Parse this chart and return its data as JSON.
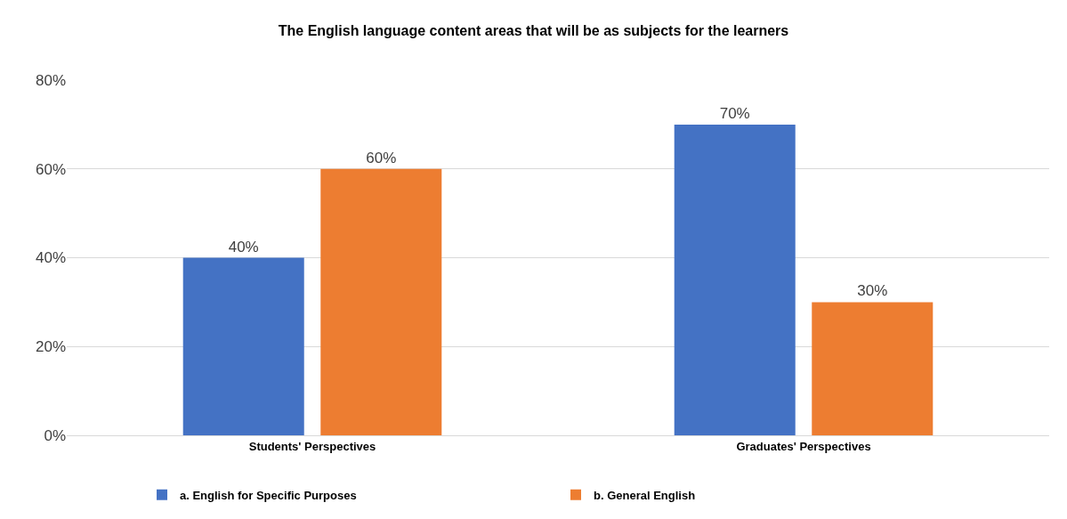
{
  "chart_data": {
    "type": "bar",
    "title": "The English language content areas that will be as subjects for the learners",
    "categories": [
      "Students' Perspectives",
      "Graduates' Perspectives"
    ],
    "series": [
      {
        "name": "a. English for Specific Purposes",
        "color": "#4472c4",
        "values": [
          40,
          70
        ],
        "value_labels": [
          "40%",
          "70%"
        ]
      },
      {
        "name": "b. General English",
        "color": "#ed7d31",
        "values": [
          60,
          30
        ],
        "value_labels": [
          "60%",
          "30%"
        ]
      }
    ],
    "ylim": [
      0,
      80
    ],
    "yticks": [
      {
        "value": 0,
        "label": "0%"
      },
      {
        "value": 20,
        "label": "20%"
      },
      {
        "value": 40,
        "label": "40%"
      },
      {
        "value": 60,
        "label": "60%"
      },
      {
        "value": 80,
        "label": "80%"
      }
    ],
    "grid": "y",
    "legend": "bottom"
  }
}
